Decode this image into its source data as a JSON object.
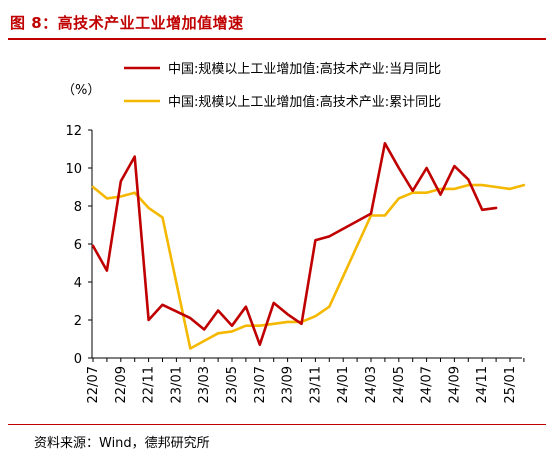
{
  "header": {
    "title": "图 8：高技术产业工业增加值增速"
  },
  "footer": {
    "source": "资料来源：Wind，德邦研究所"
  },
  "chart_data": {
    "type": "line",
    "title": "",
    "unit_label": "（%）",
    "xlabel": "",
    "ylabel": "",
    "ylim": [
      0,
      12
    ],
    "yticks": [
      0,
      2,
      4,
      6,
      8,
      10,
      12
    ],
    "grid": false,
    "legend_position": "top-right",
    "x": [
      "22/07",
      "22/08",
      "22/09",
      "22/10",
      "22/11",
      "22/12",
      "23/01",
      "23/02",
      "23/03",
      "23/04",
      "23/05",
      "23/06",
      "23/07",
      "23/08",
      "23/09",
      "23/10",
      "23/11",
      "23/12",
      "24/01",
      "24/02",
      "24/03",
      "24/04",
      "24/05",
      "24/06",
      "24/07",
      "24/08",
      "24/09",
      "24/10",
      "24/11",
      "24/12",
      "25/01",
      "25/02"
    ],
    "xtick_labels": [
      "22/07",
      "22/09",
      "22/11",
      "23/01",
      "23/03",
      "23/05",
      "23/07",
      "23/09",
      "23/11",
      "24/01",
      "24/03",
      "24/05",
      "24/07",
      "24/09",
      "24/11",
      "25/01"
    ],
    "series": [
      {
        "name": "中国:规模以上工业增加值:高技术产业:当月同比",
        "color": "#c00000",
        "values": [
          5.9,
          4.6,
          9.3,
          10.6,
          2.0,
          2.8,
          null,
          2.1,
          1.5,
          2.5,
          1.7,
          2.7,
          0.7,
          2.9,
          2.3,
          1.8,
          6.2,
          6.4,
          null,
          null,
          7.6,
          11.3,
          10.0,
          8.8,
          10.0,
          8.6,
          10.1,
          9.4,
          7.8,
          7.9,
          null,
          null
        ]
      },
      {
        "name": "中国:规模以上工业增加值:高技术产业:累计同比",
        "color": "#f5b800",
        "values": [
          9.0,
          8.4,
          8.5,
          8.7,
          7.9,
          7.4,
          null,
          0.5,
          0.9,
          1.3,
          1.4,
          1.7,
          1.7,
          1.8,
          1.9,
          1.9,
          2.2,
          2.7,
          null,
          null,
          7.5,
          7.5,
          8.4,
          8.7,
          8.7,
          8.9,
          8.9,
          9.1,
          9.1,
          9.0,
          8.9,
          9.1
        ]
      }
    ]
  }
}
